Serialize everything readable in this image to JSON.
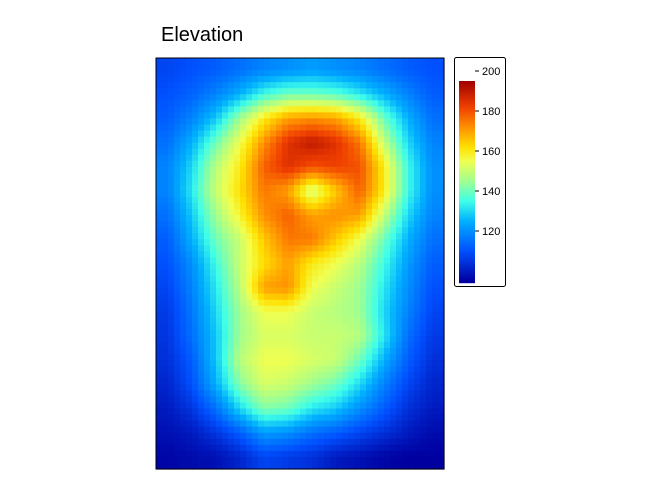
{
  "chart_data": {
    "type": "heatmap",
    "title": "Elevation",
    "xlabel": "",
    "ylabel": "",
    "grid": false,
    "legend": {
      "placement": "right",
      "range": [
        94,
        195
      ],
      "ticks": [
        120,
        140,
        160,
        180,
        200
      ],
      "tick_labels": [
        "120",
        "140",
        "160",
        "180",
        "200"
      ],
      "colors": [
        {
          "value": 95,
          "color": "#0000a0"
        },
        {
          "value": 110,
          "color": "#0050ff"
        },
        {
          "value": 125,
          "color": "#00b0ff"
        },
        {
          "value": 135,
          "color": "#40ffe8"
        },
        {
          "value": 145,
          "color": "#a0ff90"
        },
        {
          "value": 155,
          "color": "#f0ff50"
        },
        {
          "value": 162,
          "color": "#ffe000"
        },
        {
          "value": 172,
          "color": "#ff9000"
        },
        {
          "value": 182,
          "color": "#f04000"
        },
        {
          "value": 195,
          "color": "#a00000"
        }
      ]
    },
    "values": [
      [
        108,
        110,
        112,
        115,
        118,
        120,
        122,
        120,
        118,
        115,
        112,
        110
      ],
      [
        110,
        113,
        118,
        125,
        135,
        140,
        140,
        138,
        132,
        125,
        118,
        112
      ],
      [
        112,
        118,
        128,
        145,
        160,
        170,
        172,
        170,
        160,
        140,
        125,
        115
      ],
      [
        115,
        125,
        140,
        155,
        172,
        185,
        190,
        185,
        175,
        150,
        130,
        118
      ],
      [
        118,
        130,
        148,
        160,
        178,
        185,
        180,
        182,
        180,
        160,
        135,
        120
      ],
      [
        118,
        132,
        150,
        162,
        175,
        170,
        150,
        165,
        178,
        160,
        135,
        120
      ],
      [
        115,
        128,
        145,
        158,
        172,
        178,
        170,
        172,
        170,
        150,
        130,
        118
      ],
      [
        112,
        125,
        140,
        150,
        165,
        175,
        175,
        165,
        155,
        140,
        125,
        115
      ],
      [
        110,
        120,
        135,
        150,
        162,
        170,
        160,
        155,
        148,
        135,
        122,
        112
      ],
      [
        108,
        118,
        132,
        148,
        170,
        172,
        155,
        150,
        145,
        132,
        120,
        110
      ],
      [
        106,
        116,
        130,
        145,
        155,
        155,
        150,
        148,
        145,
        130,
        118,
        108
      ],
      [
        105,
        115,
        128,
        145,
        152,
        152,
        150,
        150,
        148,
        132,
        115,
        106
      ],
      [
        104,
        112,
        128,
        148,
        155,
        155,
        152,
        150,
        140,
        125,
        112,
        104
      ],
      [
        102,
        110,
        125,
        142,
        152,
        150,
        145,
        140,
        130,
        118,
        108,
        102
      ],
      [
        100,
        105,
        115,
        130,
        142,
        140,
        132,
        128,
        120,
        112,
        104,
        100
      ],
      [
        98,
        100,
        105,
        112,
        122,
        120,
        115,
        112,
        108,
        104,
        100,
        97
      ],
      [
        96,
        97,
        98,
        102,
        108,
        106,
        104,
        100,
        98,
        96,
        95,
        95
      ]
    ]
  }
}
